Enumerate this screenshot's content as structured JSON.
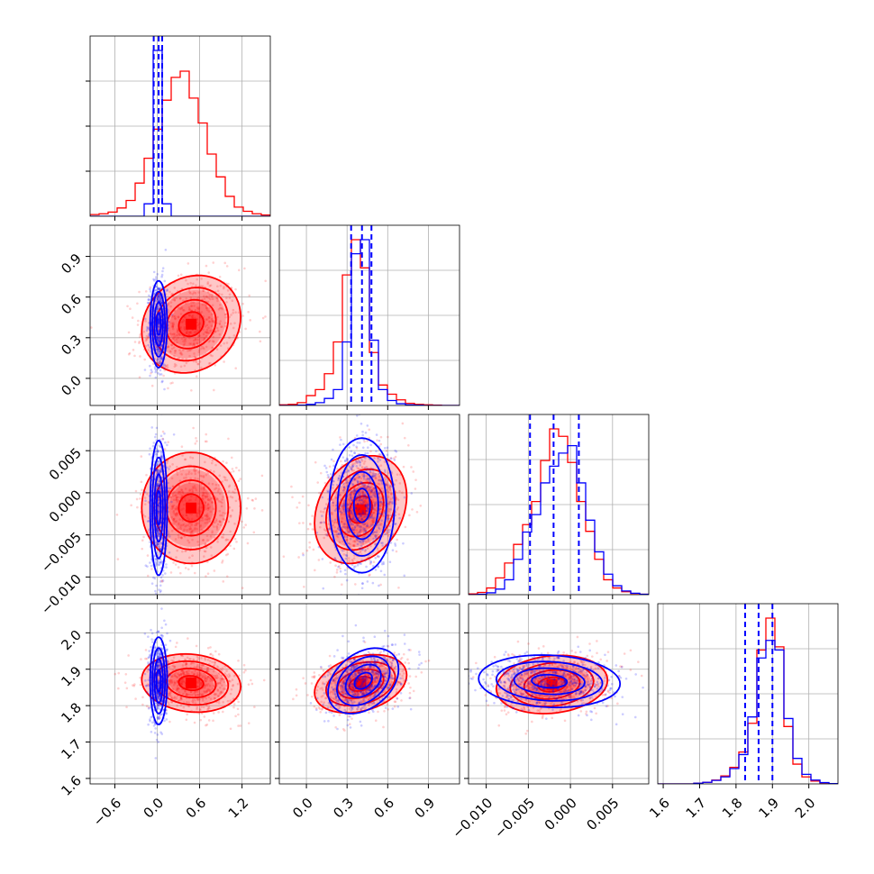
{
  "chart_data": {
    "type": "corner",
    "title": "",
    "colors": {
      "red": "#ff0000",
      "blue": "#0000ff",
      "grid": "#b0b0b0"
    },
    "grid": true,
    "legend": "none",
    "parameters": [
      {
        "range": [
          -0.95,
          1.6
        ],
        "ticks": [
          -0.6,
          0.0,
          0.6,
          1.2
        ],
        "tick_labels": [
          "−0.6",
          "0.0",
          "0.6",
          "1.2"
        ]
      },
      {
        "range": [
          -0.2,
          1.13
        ],
        "ticks": [
          0.0,
          0.3,
          0.6,
          0.9
        ],
        "tick_labels": [
          "0.0",
          "0.3",
          "0.6",
          "0.9"
        ]
      },
      {
        "range": [
          -0.0121,
          0.0093
        ],
        "ticks": [
          -0.01,
          -0.005,
          0.0,
          0.005
        ],
        "tick_labels": [
          "−0.010",
          "−0.005",
          "0.000",
          "0.005"
        ]
      },
      {
        "range": [
          1.585,
          2.08
        ],
        "ticks": [
          1.6,
          1.7,
          1.8,
          1.9,
          2.0
        ],
        "tick_labels": [
          "1.6",
          "1.7",
          "1.8",
          "1.9",
          "2.0"
        ]
      }
    ],
    "series": [
      {
        "color": "#ff0000",
        "histograms": [
          {
            "edges": [
              -0.95,
              1.6
            ],
            "counts": [
              4,
              6,
              10,
              20,
              38,
              80,
              140,
              210,
              280,
              335,
              350,
              285,
              225,
              150,
              95,
              48,
              22,
              12,
              6,
              3
            ]
          },
          {
            "edges": [
              -0.2,
              1.13
            ],
            "counts": [
              2,
              3,
              8,
              28,
              45,
              90,
              180,
              370,
              470,
              390,
              150,
              58,
              32,
              16,
              6,
              3,
              2,
              1,
              0,
              0
            ]
          },
          {
            "edges": [
              -0.0121,
              0.0093
            ],
            "counts": [
              2,
              6,
              18,
              45,
              85,
              135,
              188,
              250,
              360,
              445,
              425,
              355,
              250,
              170,
              95,
              40,
              18,
              8,
              3,
              1
            ]
          },
          {
            "edges": [
              1.585,
              2.08
            ],
            "counts": [
              0,
              0,
              0,
              0,
              2,
              5,
              12,
              25,
              52,
              100,
              190,
              420,
              520,
              430,
              180,
              62,
              22,
              9,
              3,
              1
            ]
          }
        ],
        "pairs": [
          {
            "x": 0,
            "y": 1,
            "mean": [
              0.48,
              0.4
            ],
            "sd": [
              0.35,
              0.18
            ],
            "rho": 0.15
          },
          {
            "x": 0,
            "y": 2,
            "mean": [
              0.48,
              -0.0018
            ],
            "sd": [
              0.35,
              0.0033
            ],
            "rho": 0.0
          },
          {
            "x": 1,
            "y": 2,
            "mean": [
              0.4,
              -0.002
            ],
            "sd": [
              0.17,
              0.0032
            ],
            "rho": 0.25
          },
          {
            "x": 0,
            "y": 3,
            "mean": [
              0.48,
              1.862
            ],
            "sd": [
              0.35,
              0.04
            ],
            "rho": -0.12
          },
          {
            "x": 1,
            "y": 3,
            "mean": [
              0.4,
              1.86
            ],
            "sd": [
              0.17,
              0.04
            ],
            "rho": 0.3
          },
          {
            "x": 2,
            "y": 3,
            "mean": [
              -0.0022,
              1.858
            ],
            "sd": [
              0.0033,
              0.04
            ],
            "rho": 0.15
          }
        ]
      },
      {
        "color": "#0000ff",
        "histograms": [
          {
            "edges": [
              -0.95,
              1.6
            ],
            "counts": [
              0,
              0,
              0,
              0,
              0,
              0,
              30,
              400,
              30,
              0,
              0,
              0,
              0,
              0,
              0,
              0,
              0,
              0,
              0,
              0
            ]
          },
          {
            "edges": [
              -0.2,
              1.13
            ],
            "counts": [
              0,
              0,
              1,
              3,
              8,
              20,
              45,
              180,
              430,
              470,
              185,
              45,
              14,
              5,
              2,
              1,
              0,
              0,
              0,
              0
            ]
          },
          {
            "edges": [
              -0.0121,
              0.0093
            ],
            "counts": [
              0,
              1,
              5,
              15,
              40,
              95,
              168,
              215,
              300,
              345,
              380,
              400,
              300,
              200,
              115,
              55,
              24,
              10,
              4,
              1
            ]
          },
          {
            "edges": [
              1.585,
              2.08
            ],
            "counts": [
              0,
              0,
              0,
              0,
              2,
              5,
              11,
              22,
              48,
              92,
              210,
              395,
              450,
              420,
              205,
              80,
              30,
              12,
              4,
              1
            ]
          }
        ],
        "pairs": [
          {
            "x": 0,
            "y": 1,
            "mean": [
              0.02,
              0.4
            ],
            "sd": [
              0.06,
              0.16
            ],
            "rho": 0.0
          },
          {
            "x": 0,
            "y": 2,
            "mean": [
              0.02,
              -0.0018
            ],
            "sd": [
              0.06,
              0.004
            ],
            "rho": 0.0
          },
          {
            "x": 1,
            "y": 2,
            "mean": [
              0.41,
              -0.0015
            ],
            "sd": [
              0.12,
              0.004
            ],
            "rho": 0.0
          },
          {
            "x": 0,
            "y": 3,
            "mean": [
              0.02,
              1.868
            ],
            "sd": [
              0.06,
              0.06
            ],
            "rho": 0.0
          },
          {
            "x": 1,
            "y": 3,
            "mean": [
              0.42,
              1.868
            ],
            "sd": [
              0.13,
              0.045
            ],
            "rho": 0.35
          },
          {
            "x": 2,
            "y": 3,
            "mean": [
              -0.0025,
              1.867
            ],
            "sd": [
              0.0042,
              0.036
            ],
            "rho": -0.1
          }
        ]
      }
    ],
    "quantiles": [
      [
        -0.05,
        0.02,
        0.07
      ],
      [
        0.33,
        0.41,
        0.48
      ],
      [
        -0.0048,
        -0.002,
        0.001
      ],
      [
        1.825,
        1.862,
        1.9
      ]
    ]
  }
}
